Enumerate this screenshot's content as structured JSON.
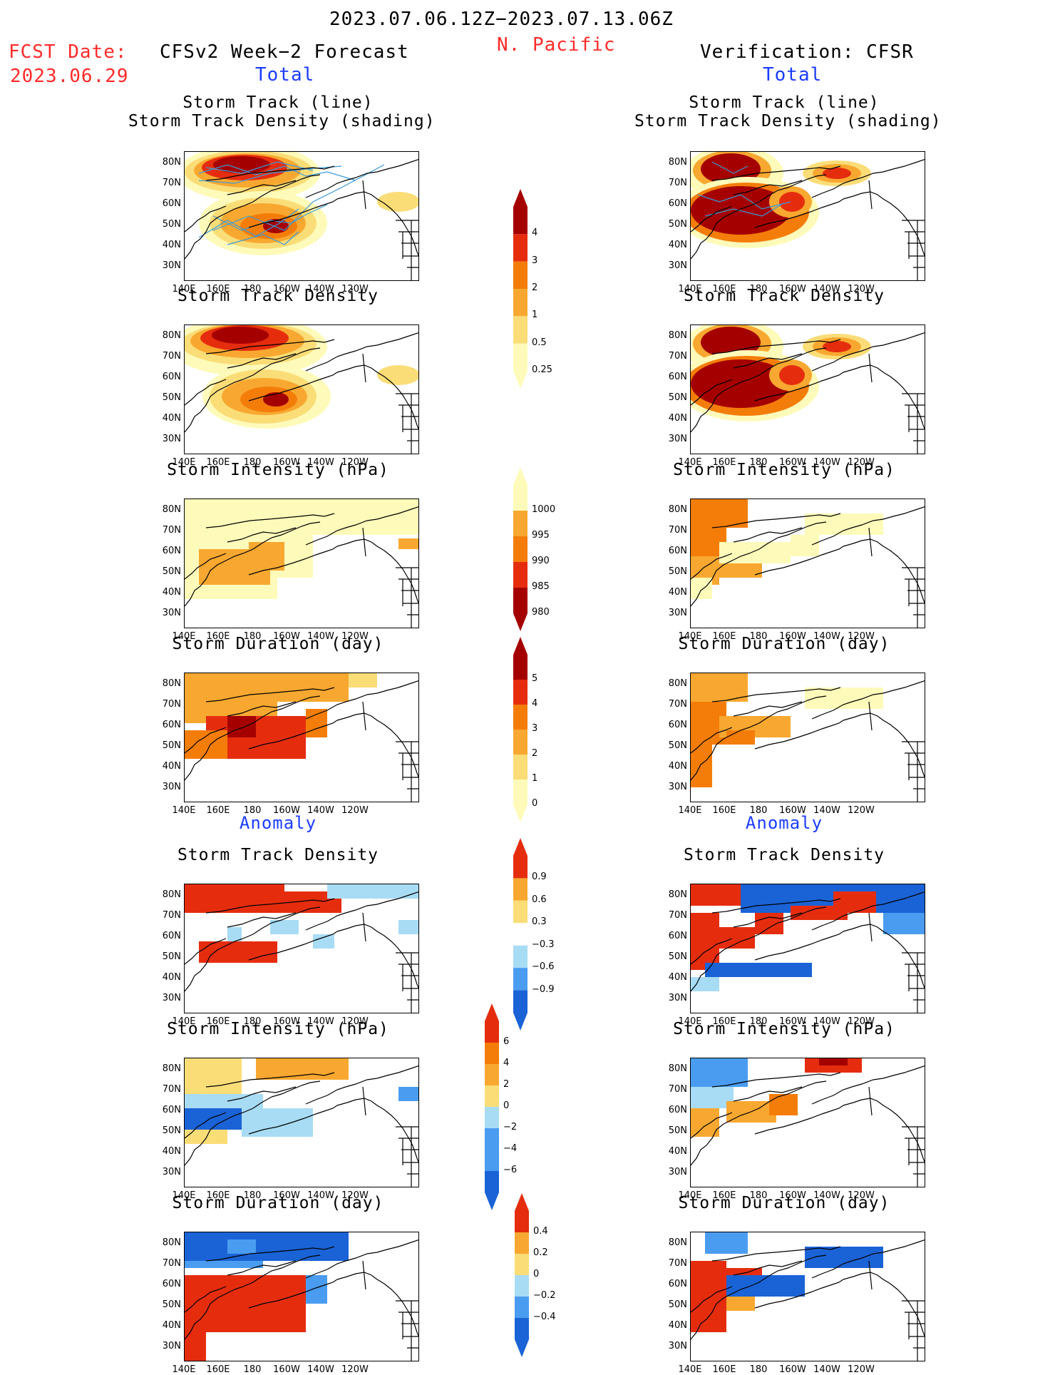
{
  "header": {
    "period": "2023.07.06.12Z−2023.07.13.06Z",
    "region": "N. Pacific",
    "fcst_label": "FCST Date:",
    "fcst_date": "2023.06.29",
    "left_title": "CFSv2 Week−2 Forecast",
    "right_title": "Verification: CFSR",
    "total_label": "Total",
    "anomaly_label": "Anomaly"
  },
  "panels": {
    "track_title_1": "Storm Track (line)",
    "track_title_2": "Storm Track Density (shading)",
    "density": "Storm Track Density",
    "intensity": "Storm Intensity (hPa)",
    "duration": "Storm Duration (day)"
  },
  "axes": {
    "lat_ticks": [
      "80N",
      "70N",
      "60N",
      "50N",
      "40N",
      "30N"
    ],
    "lon_ticks": [
      "140E",
      "160E",
      "180",
      "160W",
      "140W",
      "120W"
    ]
  },
  "colorbars": {
    "density_total": [
      "4",
      "3",
      "2",
      "1",
      "0.5",
      "0.25"
    ],
    "intensity_total": [
      "1000",
      "995",
      "990",
      "985",
      "980"
    ],
    "duration_total": [
      "5",
      "4",
      "3",
      "2",
      "1",
      "0"
    ],
    "density_anom": [
      "0.9",
      "0.6",
      "0.3",
      "−0.3",
      "−0.6",
      "−0.9"
    ],
    "intensity_anom": [
      "6",
      "4",
      "2",
      "0",
      "−2",
      "−4",
      "−6"
    ],
    "duration_anom": [
      "0.4",
      "0.2",
      "0",
      "−0.2",
      "−0.4"
    ]
  },
  "colors": {
    "darkred": "#a50000",
    "red": "#e52d0e",
    "orange": "#f47d09",
    "lightorange": "#f8a830",
    "yellow": "#fbdd78",
    "paleyellow": "#fefbba",
    "blue": "#1a63d6",
    "midblue": "#4a9cf0",
    "lightblue": "#a8dcf4",
    "track": "#3a9ad9"
  }
}
